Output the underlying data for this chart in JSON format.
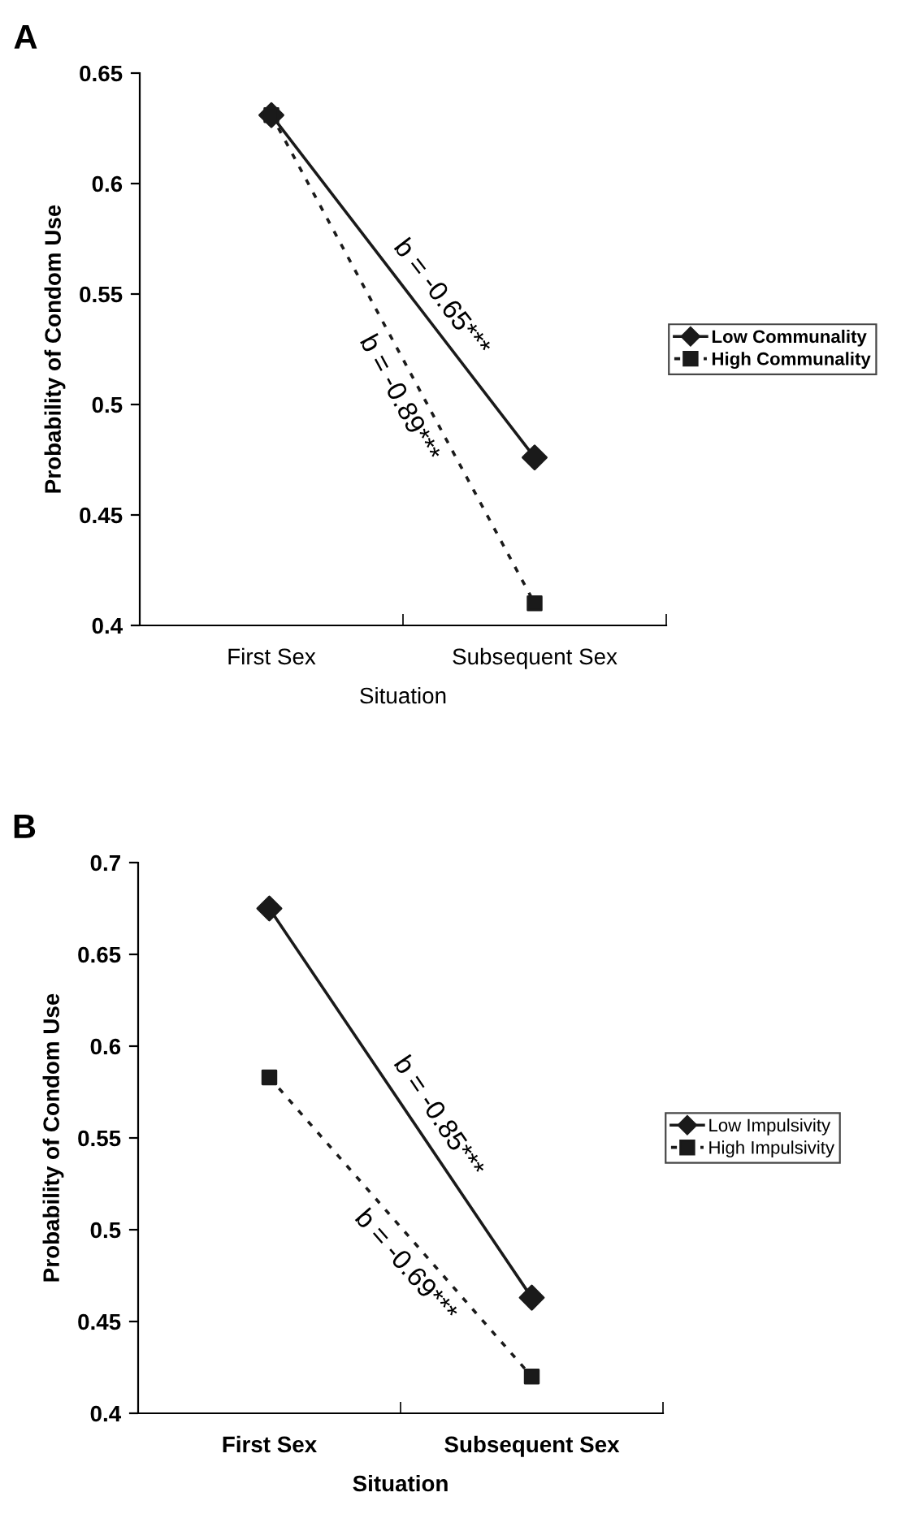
{
  "chart_data": [
    {
      "type": "line",
      "title": "A",
      "xlabel": "Situation",
      "ylabel": "Probability of Condom Use",
      "categories": [
        "First Sex",
        "Subsequent Sex"
      ],
      "series": [
        {
          "name": "Low Communality",
          "color": "#1a1a1a",
          "values": [
            0.631,
            0.476
          ],
          "marker": "diamond",
          "line_style": "solid"
        },
        {
          "name": "High Communality",
          "color": "#1a1a1a",
          "values": [
            0.631,
            0.41
          ],
          "marker": "square",
          "line_style": "dotted"
        }
      ],
      "ylim": [
        0.4,
        0.65
      ],
      "yticks": [
        {
          "value": 0.4,
          "label": "0.4"
        },
        {
          "value": 0.45,
          "label": "0.45"
        },
        {
          "value": 0.5,
          "label": "0.5"
        },
        {
          "value": 0.55,
          "label": "0.55"
        },
        {
          "value": 0.6,
          "label": "0.6"
        },
        {
          "value": 0.65,
          "label": "0.65"
        }
      ],
      "annotations": [
        "b = -0.65***",
        "b = -0.89***"
      ],
      "grid": false,
      "legend": "right"
    },
    {
      "type": "line",
      "title": "B",
      "xlabel": "Situation",
      "ylabel": "Probability of Condom Use",
      "categories": [
        "First Sex",
        "Subsequent Sex"
      ],
      "series": [
        {
          "name": "Low Impulsivity",
          "color": "#1a1a1a",
          "values": [
            0.675,
            0.463
          ],
          "marker": "diamond",
          "line_style": "solid"
        },
        {
          "name": "High Impulsivity",
          "color": "#1a1a1a",
          "values": [
            0.583,
            0.42
          ],
          "marker": "square",
          "line_style": "dotted"
        }
      ],
      "ylim": [
        0.4,
        0.7
      ],
      "yticks": [
        {
          "value": 0.4,
          "label": "0.4"
        },
        {
          "value": 0.45,
          "label": "0.45"
        },
        {
          "value": 0.5,
          "label": "0.5"
        },
        {
          "value": 0.55,
          "label": "0.55"
        },
        {
          "value": 0.6,
          "label": "0.6"
        },
        {
          "value": 0.65,
          "label": "0.65"
        },
        {
          "value": 0.7,
          "label": "0.7"
        }
      ],
      "annotations": [
        "b = -0.85***",
        "b = -0.69***"
      ],
      "grid": false,
      "legend": "right"
    }
  ]
}
